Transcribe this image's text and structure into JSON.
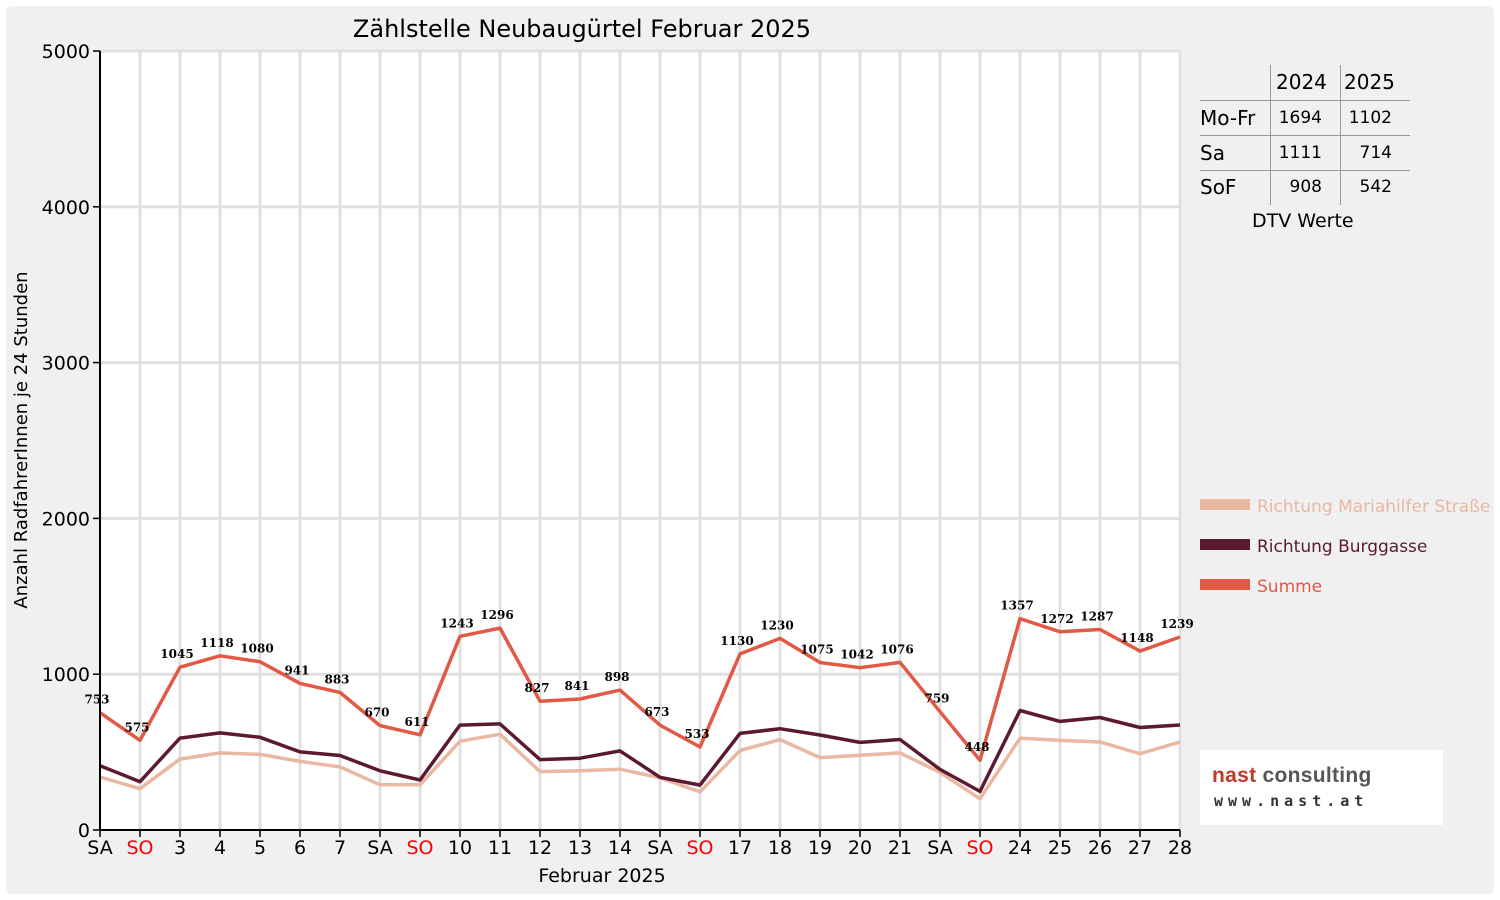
{
  "chart_data": {
    "type": "line",
    "title": "Zählstelle Neubaugürtel Februar 2025",
    "xlabel": "Februar 2025",
    "ylabel": "Anzahl RadfahrerInnen je 24 Stunden",
    "ylim": [
      0,
      5000
    ],
    "yticks": [
      "0",
      "1000",
      "2000",
      "3000",
      "4000",
      "5000"
    ],
    "grid": true,
    "legend_position": "right",
    "categories": [
      "SA",
      "SO",
      "3",
      "4",
      "5",
      "6",
      "7",
      "SA",
      "SO",
      "10",
      "11",
      "12",
      "13",
      "14",
      "SA",
      "SO",
      "17",
      "18",
      "19",
      "20",
      "21",
      "SA",
      "SO",
      "24",
      "25",
      "26",
      "27",
      "28"
    ],
    "weekend_color": "#ff0000",
    "series": [
      {
        "name": "Richtung Mariahilfer Straße",
        "color": "#e8b8a3",
        "values": [
          340,
          265,
          455,
          495,
          485,
          440,
          405,
          290,
          290,
          570,
          615,
          375,
          380,
          390,
          335,
          245,
          510,
          580,
          465,
          480,
          495,
          370,
          200,
          590,
          575,
          565,
          490,
          565
        ]
      },
      {
        "name": "Richtung Burggasse",
        "color": "#5c1a30",
        "values": [
          413,
          310,
          590,
          623,
          595,
          501,
          478,
          380,
          321,
          673,
          681,
          452,
          461,
          508,
          338,
          288,
          620,
          650,
          610,
          562,
          581,
          389,
          248,
          767,
          697,
          722,
          658,
          674
        ]
      },
      {
        "name": "Summe",
        "color": "#e05a45",
        "values": [
          753,
          575,
          1045,
          1118,
          1080,
          941,
          883,
          670,
          611,
          1243,
          1296,
          827,
          841,
          898,
          673,
          533,
          1130,
          1230,
          1075,
          1042,
          1076,
          759,
          448,
          1357,
          1272,
          1287,
          1148,
          1239
        ],
        "labels": true
      }
    ]
  },
  "dtv": {
    "col_2024": "2024",
    "col_2025": "2025",
    "rows": [
      {
        "label": "Mo-Fr",
        "v2024": "1694",
        "v2025": "1102"
      },
      {
        "label": "Sa",
        "v2024": "1111",
        "v2025": "714"
      },
      {
        "label": "SoF",
        "v2024": "908",
        "v2025": "542"
      }
    ],
    "caption": "DTV Werte"
  },
  "logo": {
    "name_part1": "nast",
    "name_part2": "consulting",
    "url": "www.nast.at"
  }
}
